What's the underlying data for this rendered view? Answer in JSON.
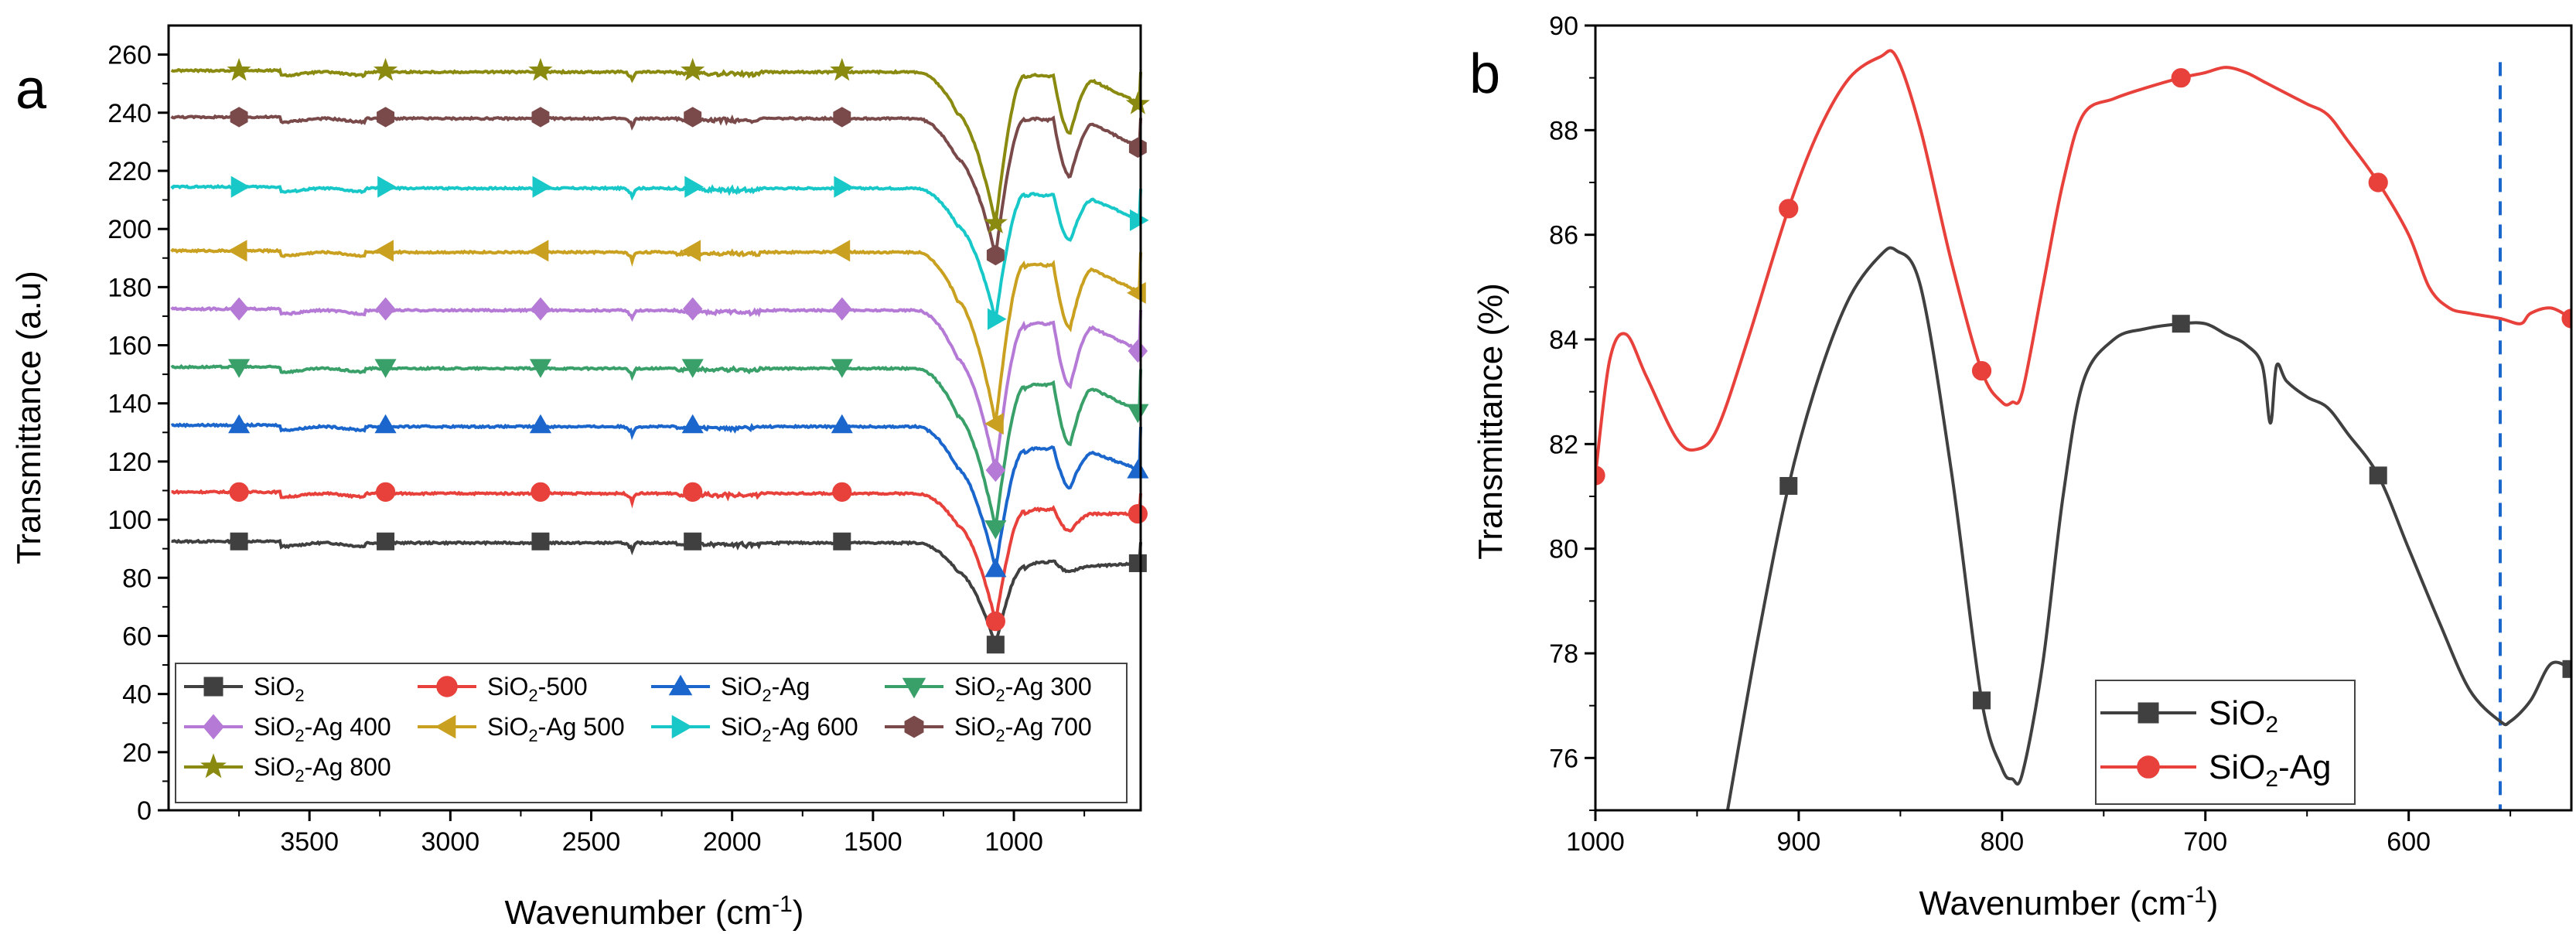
{
  "chart_data": [
    {
      "panel": "a",
      "type": "line",
      "xlabel": "Wavenumber (cm",
      "xlabel_sup": "-1",
      "xlabel_end": ")",
      "ylabel": "Transmittance (a.u)",
      "xlim": [
        4000,
        550
      ],
      "ylim": [
        0,
        270
      ],
      "x_ticks": [
        3500,
        3000,
        2500,
        2000,
        1500,
        1000
      ],
      "y_ticks": [
        0,
        20,
        40,
        60,
        80,
        100,
        120,
        140,
        160,
        180,
        200,
        220,
        240,
        260
      ],
      "legend_position": "bottom",
      "series": [
        {
          "name": "SiO2",
          "label_main": "SiO",
          "label_sub": "2",
          "label_tail": "",
          "color": "#404040",
          "marker": "square",
          "baseline": 92,
          "min": 57,
          "post": [
            80,
            84,
            82,
            86,
            85
          ]
        },
        {
          "name": "SiO2-500",
          "label_main": "SiO",
          "label_sub": "2",
          "label_tail": "-500",
          "color": "#e8403a",
          "marker": "circle",
          "baseline": 109,
          "min": 65,
          "post": [
            95,
            103,
            96,
            104,
            102
          ]
        },
        {
          "name": "SiO2-Ag",
          "label_main": "SiO",
          "label_sub": "2",
          "label_tail": "-Ag",
          "color": "#1a66cc",
          "marker": "triangle-up",
          "baseline": 132,
          "min": 83,
          "post": [
            110,
            124,
            111,
            125,
            117
          ]
        },
        {
          "name": "SiO2-Ag 300",
          "label_main": "SiO",
          "label_sub": "2",
          "label_tail": "-Ag 300",
          "color": "#3aa06a",
          "marker": "triangle-down",
          "baseline": 152,
          "min": 97,
          "post": [
            126,
            146,
            126,
            147,
            137
          ]
        },
        {
          "name": "SiO2-Ag 400",
          "label_main": "SiO",
          "label_sub": "2",
          "label_tail": "-Ag 400",
          "color": "#b57ad6",
          "marker": "diamond",
          "baseline": 172,
          "min": 117,
          "post": [
            145,
            167,
            146,
            168,
            158
          ]
        },
        {
          "name": "SiO2-Ag 500",
          "label_main": "SiO",
          "label_sub": "2",
          "label_tail": "-Ag 500",
          "color": "#c9a020",
          "marker": "triangle-left",
          "baseline": 192,
          "min": 133,
          "post": [
            165,
            188,
            166,
            188,
            178
          ]
        },
        {
          "name": "SiO2-Ag 600",
          "label_main": "SiO",
          "label_sub": "2",
          "label_tail": "-Ag 600",
          "color": "#18c8c8",
          "marker": "triangle-right",
          "baseline": 214,
          "min": 169,
          "post": [
            195,
            212,
            196,
            212,
            203
          ]
        },
        {
          "name": "SiO2-Ag 700",
          "label_main": "SiO",
          "label_sub": "2",
          "label_tail": "-Ag 700",
          "color": "#7a4a4a",
          "marker": "hexagon",
          "baseline": 238,
          "min": 191,
          "post": [
            217,
            238,
            218,
            238,
            228
          ]
        },
        {
          "name": "SiO2-Ag 800",
          "label_main": "SiO",
          "label_sub": "2",
          "label_tail": "-Ag 800",
          "color": "#8a8a10",
          "marker": "star",
          "baseline": 254,
          "min": 202,
          "post": [
            232,
            253,
            233,
            253,
            243
          ]
        }
      ]
    },
    {
      "panel": "b",
      "type": "line",
      "xlabel": "Wavenumber (cm",
      "xlabel_sup": "-1",
      "xlabel_end": ")",
      "ylabel": "Transmittance (%)",
      "xlim": [
        1000,
        520
      ],
      "ylim": [
        75,
        90
      ],
      "x_ticks": [
        1000,
        900,
        800,
        700,
        600
      ],
      "y_ticks": [
        76,
        78,
        80,
        82,
        84,
        86,
        88,
        90
      ],
      "legend_position": "bottom-right",
      "vline": {
        "x": 555,
        "color": "#1a66cc",
        "style": "dashed"
      },
      "series": [
        {
          "name": "SiO2",
          "label_main": "SiO",
          "label_sub": "2",
          "label_tail": "",
          "color": "#404040",
          "marker": "square",
          "x": [
            935,
            920,
            905,
            890,
            875,
            860,
            852,
            840,
            825,
            810,
            800,
            795,
            790,
            780,
            770,
            760,
            745,
            730,
            712,
            700,
            690,
            680,
            672,
            668,
            665,
            660,
            650,
            640,
            630,
            615,
            600,
            585,
            570,
            555,
            550,
            540,
            530,
            520
          ],
          "y": [
            75.0,
            78.3,
            81.2,
            83.3,
            84.8,
            85.6,
            85.7,
            85.0,
            81.5,
            77.1,
            75.8,
            75.6,
            75.7,
            77.8,
            81.0,
            83.2,
            84.0,
            84.2,
            84.3,
            84.3,
            84.1,
            83.9,
            83.5,
            82.4,
            83.5,
            83.2,
            82.9,
            82.7,
            82.2,
            81.4,
            80.0,
            78.6,
            77.3,
            76.7,
            76.7,
            77.1,
            77.8,
            77.7
          ],
          "markers_x": [
            905,
            810,
            712,
            615,
            520
          ]
        },
        {
          "name": "SiO2-Ag",
          "label_main": "SiO",
          "label_sub": "2",
          "label_tail": "-Ag",
          "color": "#e8403a",
          "marker": "circle",
          "x": [
            1000,
            993,
            985,
            975,
            960,
            950,
            940,
            925,
            905,
            890,
            875,
            860,
            852,
            840,
            825,
            810,
            800,
            795,
            790,
            780,
            770,
            760,
            745,
            730,
            712,
            700,
            690,
            680,
            670,
            660,
            650,
            640,
            630,
            615,
            600,
            590,
            580,
            570,
            555,
            545,
            540,
            530,
            520
          ],
          "y": [
            81.4,
            83.6,
            84.1,
            83.3,
            82.1,
            81.9,
            82.3,
            84.0,
            86.5,
            88.0,
            89.0,
            89.4,
            89.4,
            88.0,
            85.5,
            83.4,
            82.8,
            82.8,
            83.0,
            85.0,
            87.0,
            88.3,
            88.6,
            88.8,
            89.0,
            89.1,
            89.2,
            89.1,
            88.9,
            88.7,
            88.5,
            88.3,
            87.8,
            87.0,
            86.0,
            85.0,
            84.6,
            84.5,
            84.4,
            84.3,
            84.5,
            84.6,
            84.4
          ],
          "markers_x": [
            1000,
            905,
            810,
            712,
            615,
            520
          ]
        }
      ]
    }
  ]
}
